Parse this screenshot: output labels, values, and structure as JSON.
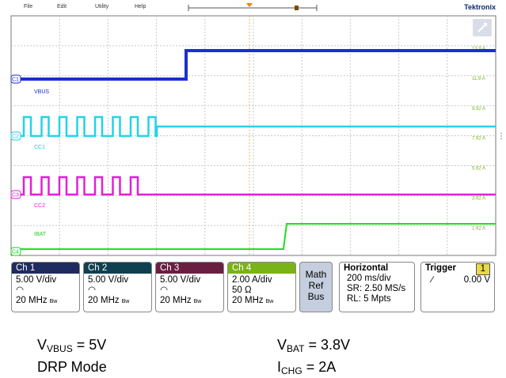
{
  "menu": [
    "File",
    "Edit",
    "Utility",
    "Help"
  ],
  "brand": "Tektronix",
  "scale_labels": [
    "13.9 A",
    "11.9 A",
    "9.92 A",
    "7.92 A",
    "5.92 A",
    "3.92 A",
    "1.92 A"
  ],
  "traces": [
    {
      "badge": "C1",
      "name": "VBUS"
    },
    {
      "badge": "C2",
      "name": "CC1"
    },
    {
      "badge": "C3",
      "name": "CC2"
    },
    {
      "badge": "C4",
      "name": "IBAT"
    }
  ],
  "channels": [
    {
      "title": "Ch 1",
      "lines": [
        "5.00 V/div",
        "20 MHz"
      ],
      "bw": "Bw"
    },
    {
      "title": "Ch 2",
      "lines": [
        "5.00 V/div",
        "20 MHz"
      ],
      "bw": "Bw"
    },
    {
      "title": "Ch 3",
      "lines": [
        "5.00 V/div",
        "20 MHz"
      ],
      "bw": "Bw"
    },
    {
      "title": "Ch 4",
      "lines": [
        "2.00 A/div",
        "50 Ω",
        "20 MHz"
      ],
      "bw": "Bw"
    }
  ],
  "math_ref_bus": [
    "Math",
    "Ref",
    "Bus"
  ],
  "horizontal": {
    "title": "Horizontal",
    "lines": [
      "200 ms/div",
      "SR: 2.50 MS/s",
      "RL: 5 Mpts"
    ]
  },
  "trigger": {
    "title": "Trigger",
    "source": "1",
    "level": "0.00 V"
  },
  "captions": [
    {
      "main": "V",
      "sub": "VBUS",
      "rest": " = 5V"
    },
    {
      "text": "DRP Mode"
    },
    {
      "main": "V",
      "sub": "BAT",
      "rest": " = 3.8V"
    },
    {
      "main": "I",
      "sub": "CHG",
      "rest": " = 2A"
    }
  ]
}
